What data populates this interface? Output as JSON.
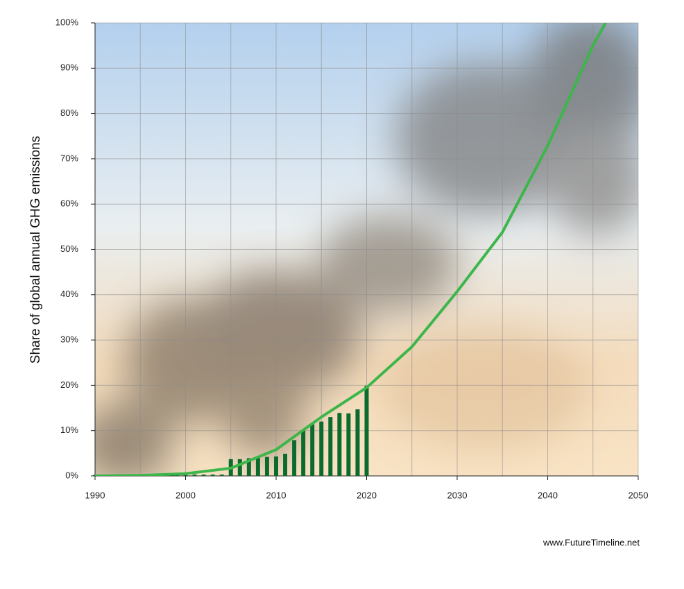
{
  "chart_data": {
    "type": "bar",
    "y_label": "Share of global annual GHG emissions",
    "source": "www.FutureTimeline.net",
    "xlim": [
      1990,
      2050
    ],
    "xticks": [
      1990,
      2000,
      2010,
      2020,
      2030,
      2040,
      2050
    ],
    "x_minor_ticks": [
      1995,
      2005,
      2015,
      2025,
      2035,
      2045
    ],
    "ylim": [
      0,
      100
    ],
    "yticks": [
      {
        "value": 0,
        "label": "0%"
      },
      {
        "value": 10,
        "label": "10%"
      },
      {
        "value": 20,
        "label": "20%"
      },
      {
        "value": 30,
        "label": "30%"
      },
      {
        "value": 40,
        "label": "40%"
      },
      {
        "value": 50,
        "label": "50%"
      },
      {
        "value": 60,
        "label": "60%"
      },
      {
        "value": 70,
        "label": "70%"
      },
      {
        "value": 80,
        "label": "80%"
      },
      {
        "value": 90,
        "label": "90%"
      },
      {
        "value": 100,
        "label": "100%"
      }
    ],
    "grid": true,
    "series": [
      {
        "type": "bar",
        "color": "#0b6b2e",
        "x": [
          1990,
          1991,
          1992,
          1993,
          1994,
          1995,
          1996,
          1997,
          1998,
          1999,
          2000,
          2001,
          2002,
          2003,
          2004,
          2005,
          2006,
          2007,
          2008,
          2009,
          2010,
          2011,
          2012,
          2013,
          2014,
          2015,
          2016,
          2017,
          2018,
          2019,
          2020
        ],
        "values": [
          0.2,
          0.2,
          0.2,
          0.2,
          0.2,
          0.2,
          0.2,
          0.2,
          0.2,
          0.2,
          0.2,
          0.3,
          0.3,
          0.3,
          0.3,
          3.7,
          3.7,
          3.9,
          4.0,
          4.2,
          4.3,
          4.9,
          7.9,
          10.1,
          11.4,
          12.0,
          13.0,
          13.9,
          13.8,
          14.7,
          19.9
        ]
      },
      {
        "type": "line",
        "color": "#3cb64a",
        "x": [
          1990,
          1995,
          2000,
          2005,
          2010,
          2015,
          2020,
          2025,
          2030,
          2035,
          2040,
          2045,
          2046.4
        ],
        "values": [
          0,
          0.1,
          0.5,
          1.7,
          5.8,
          13.0,
          19.5,
          28.5,
          40.7,
          53.8,
          72.9,
          95.0,
          100
        ]
      }
    ]
  }
}
